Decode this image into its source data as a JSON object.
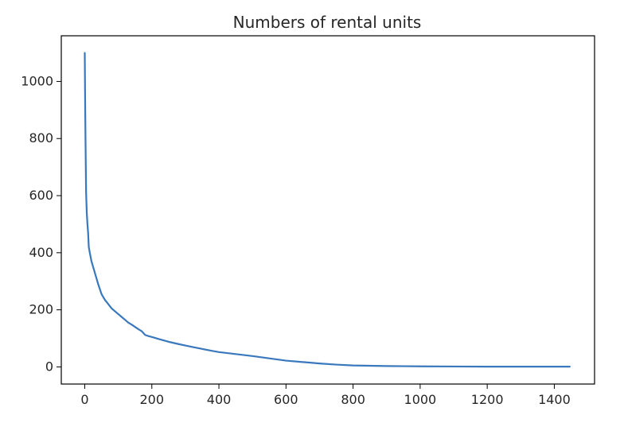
{
  "chart_data": {
    "type": "line",
    "title": "Numbers of rental units",
    "xlabel": "",
    "ylabel": "",
    "xlim": [
      -70,
      1520
    ],
    "ylim": [
      -60,
      1160
    ],
    "x_ticks": [
      0,
      200,
      400,
      600,
      800,
      1000,
      1200,
      1400
    ],
    "y_ticks": [
      0,
      200,
      400,
      600,
      800,
      1000
    ],
    "x_tick_labels": [
      "0",
      "200",
      "400",
      "600",
      "800",
      "1000",
      "1200",
      "1400"
    ],
    "y_tick_labels": [
      "0",
      "200",
      "400",
      "600",
      "800",
      "1000"
    ],
    "grid": false,
    "colors": {
      "line": "#3a78bd"
    },
    "series": [
      {
        "x": [
          0,
          1,
          2,
          4,
          6,
          8,
          10,
          12,
          15,
          20,
          25,
          30,
          40,
          50,
          60,
          70,
          80,
          90,
          100,
          110,
          120,
          130,
          140,
          150,
          160,
          170,
          180,
          190,
          200,
          220,
          250,
          280,
          300,
          320,
          350,
          380,
          400,
          450,
          500,
          550,
          600,
          650,
          700,
          750,
          800,
          850,
          900,
          1000,
          1100,
          1200,
          1300,
          1400,
          1446
        ],
        "y": [
          1100,
          950,
          820,
          610,
          540,
          500,
          470,
          420,
          400,
          370,
          350,
          330,
          290,
          255,
          235,
          220,
          205,
          195,
          185,
          175,
          165,
          155,
          148,
          140,
          132,
          125,
          112,
          108,
          105,
          98,
          88,
          80,
          75,
          70,
          63,
          56,
          52,
          45,
          38,
          30,
          22,
          17,
          12,
          8,
          5,
          4,
          3,
          2,
          1.5,
          1,
          1,
          1,
          1
        ]
      }
    ]
  }
}
